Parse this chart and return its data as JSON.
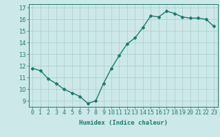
{
  "x": [
    0,
    1,
    2,
    3,
    4,
    5,
    6,
    7,
    8,
    9,
    10,
    11,
    12,
    13,
    14,
    15,
    16,
    17,
    18,
    19,
    20,
    21,
    22,
    23
  ],
  "y": [
    11.8,
    11.6,
    10.9,
    10.5,
    10.0,
    9.7,
    9.4,
    8.8,
    9.0,
    10.5,
    11.8,
    12.9,
    13.9,
    14.4,
    15.3,
    16.3,
    16.2,
    16.7,
    16.5,
    16.2,
    16.1,
    16.1,
    16.0,
    15.4
  ],
  "line_color": "#1a7a6e",
  "marker": "D",
  "marker_size": 2.0,
  "bg_color": "#cce8e8",
  "grid_color": "#aacccc",
  "xlabel": "Humidex (Indice chaleur)",
  "xlim": [
    -0.5,
    23.5
  ],
  "ylim": [
    8.5,
    17.3
  ],
  "yticks": [
    9,
    10,
    11,
    12,
    13,
    14,
    15,
    16,
    17
  ],
  "xtick_labels": [
    "0",
    "1",
    "2",
    "3",
    "4",
    "5",
    "6",
    "7",
    "8",
    "9",
    "10",
    "11",
    "12",
    "13",
    "14",
    "15",
    "16",
    "17",
    "18",
    "19",
    "20",
    "21",
    "22",
    "23"
  ],
  "xlabel_fontsize": 6.5,
  "tick_fontsize": 6.0,
  "line_width": 1.0
}
